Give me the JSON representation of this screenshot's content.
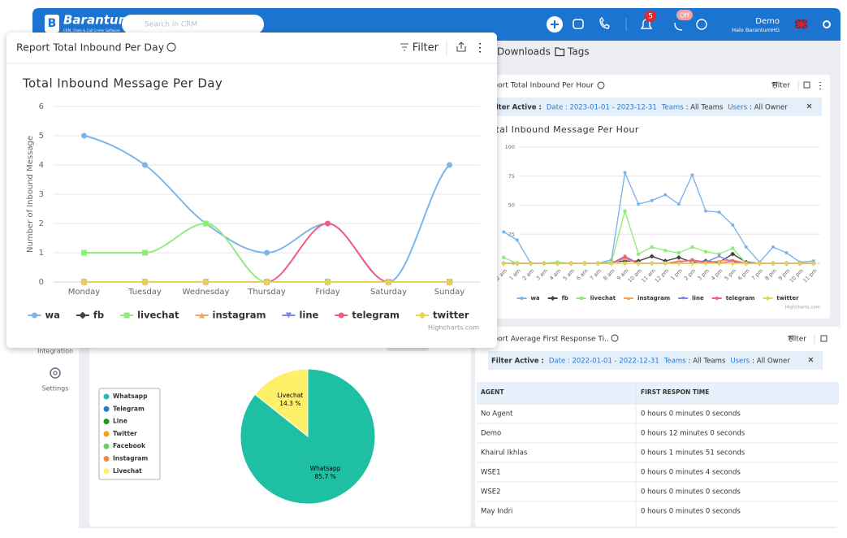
{
  "topbar": {
    "brand": "Barantum",
    "tagline": "CRM, Chats & Call Center Software",
    "search_placeholder": "Search in CRM",
    "notifications": "5",
    "status": "Off",
    "user_name": "Demo",
    "user_org": "Halo BarantumHG"
  },
  "sidebar": {
    "items": [
      "Integration",
      "Settings"
    ]
  },
  "tabs": [
    "Downloads",
    "Tags"
  ],
  "popup": {
    "header": "Report Total Inbound Per Day",
    "filter": "Filter",
    "chart": {
      "type": "line",
      "smooth": true,
      "title": "Total Inbound Message Per Day",
      "y_label": "Number of Inbound Message",
      "categories": [
        "Monday",
        "Tuesday",
        "Wednesday",
        "Thursday",
        "Friday",
        "Saturday",
        "Sunday"
      ],
      "series": [
        {
          "name": "wa",
          "color": "#7cb5ec",
          "values": [
            5,
            4,
            2,
            1,
            2,
            0,
            4
          ]
        },
        {
          "name": "fb",
          "color": "#434348",
          "values": [
            0,
            0,
            0,
            0,
            0,
            0,
            0
          ]
        },
        {
          "name": "livechat",
          "color": "#90ed7d",
          "values": [
            1,
            1,
            2,
            0,
            0,
            0,
            0
          ]
        },
        {
          "name": "instagram",
          "color": "#f7a35c",
          "values": [
            0,
            0,
            0,
            0,
            0,
            0,
            0
          ]
        },
        {
          "name": "line",
          "color": "#8085e9",
          "values": [
            0,
            0,
            0,
            0,
            0,
            0,
            0
          ]
        },
        {
          "name": "telegram",
          "color": "#f15c80",
          "values": [
            0,
            0,
            0,
            0,
            2,
            0,
            0
          ]
        },
        {
          "name": "twitter",
          "color": "#e4d354",
          "values": [
            0,
            0,
            0,
            0,
            0,
            0,
            0
          ]
        }
      ],
      "ylim": [
        0,
        6
      ],
      "yticks": [
        0,
        1,
        2,
        3,
        4,
        5,
        6
      ],
      "grid": true,
      "legend": "bottom",
      "credit": "Highcharts.com"
    }
  },
  "hourly_card": {
    "header": "Report Total Inbound Per Hour",
    "filter": "Filter",
    "filter_active": {
      "label": "Filter Active :",
      "date": "Date : 2023-01-01 - 2023-12-31",
      "teams_label": "Teams",
      "teams": ": All Teams",
      "users_label": "Users",
      "users": ": All Owner"
    },
    "chart": {
      "type": "line",
      "smooth": false,
      "title": "Total Inbound Message Per Hour",
      "categories": [
        "12 am",
        "1 am",
        "2 am",
        "3 am",
        "4 am",
        "5 am",
        "6 am",
        "7 am",
        "8 am",
        "9 am",
        "10 am",
        "11 am",
        "12 pm",
        "1 pm",
        "2 pm",
        "3 pm",
        "4 pm",
        "5 pm",
        "6 pm",
        "7 pm",
        "8 pm",
        "9 pm",
        "10 pm",
        "11 pm"
      ],
      "series": [
        {
          "name": "wa",
          "color": "#7cb5ec",
          "values": [
            27,
            20,
            0,
            0,
            0,
            0,
            0,
            0,
            3,
            78,
            51,
            54,
            59,
            51,
            76,
            45,
            44,
            33,
            14,
            1,
            14,
            9,
            1,
            2
          ]
        },
        {
          "name": "fb",
          "color": "#434348",
          "values": [
            0,
            0,
            0,
            0,
            0,
            0,
            0,
            0,
            1,
            2,
            2,
            6,
            2,
            5,
            1,
            2,
            1,
            8,
            1,
            0,
            0,
            0,
            0,
            0
          ]
        },
        {
          "name": "livechat",
          "color": "#90ed7d",
          "values": [
            5,
            0,
            0,
            0,
            1,
            0,
            0,
            0,
            1,
            45,
            8,
            14,
            11,
            9,
            14,
            10,
            8,
            13,
            0,
            0,
            0,
            0,
            0,
            0
          ]
        },
        {
          "name": "instagram",
          "color": "#f7a35c",
          "values": [
            0,
            0,
            0,
            0,
            0,
            0,
            0,
            0,
            0,
            4,
            0,
            0,
            0,
            2,
            2,
            1,
            2,
            3,
            0,
            0,
            0,
            0,
            0,
            0
          ]
        },
        {
          "name": "line",
          "color": "#8085e9",
          "values": [
            0,
            0,
            0,
            0,
            0,
            0,
            0,
            0,
            0,
            5,
            0,
            0,
            0,
            0,
            0,
            1,
            6,
            1,
            0,
            0,
            0,
            0,
            0,
            0
          ]
        },
        {
          "name": "telegram",
          "color": "#f15c80",
          "values": [
            0,
            0,
            0,
            0,
            0,
            0,
            0,
            0,
            0,
            6,
            0,
            0,
            0,
            1,
            3,
            1,
            0,
            2,
            0,
            0,
            0,
            0,
            0,
            0
          ]
        },
        {
          "name": "twitter",
          "color": "#e4d354",
          "values": [
            0,
            0,
            0,
            0,
            0,
            0,
            0,
            0,
            0,
            0,
            0,
            0,
            0,
            0,
            0,
            0,
            0,
            0,
            0,
            0,
            0,
            0,
            0,
            0
          ]
        }
      ],
      "ylim": [
        0,
        100
      ],
      "yticks": [
        0,
        25,
        50,
        75,
        100
      ],
      "grid": true,
      "legend": "bottom",
      "credit": "Highcharts.com"
    }
  },
  "pie_card": {
    "chart": {
      "type": "pie",
      "categories": [
        "Whatsapp",
        "Telegram",
        "Line",
        "Twitter",
        "Facebook",
        "Instagram",
        "Livechat"
      ],
      "colors": [
        "#1fbfa3",
        "#1f7fc4",
        "#1a9e1a",
        "#f5a31a",
        "#66cf66",
        "#f28a4f",
        "#fff06a"
      ],
      "values": [
        85.7,
        0,
        0,
        0,
        0,
        0,
        14.3
      ],
      "value_labels": [
        "85.7 %",
        null,
        null,
        null,
        null,
        null,
        "14.3 %"
      ],
      "legend": "left"
    }
  },
  "response_card": {
    "header": "Report Average First Response Ti..",
    "filter": "Filter",
    "filter_active": {
      "label": "Filter Active :",
      "date": "Date : 2022-01-01 - 2022-12-31",
      "teams_label": "Teams",
      "teams": ": All Teams",
      "users_label": "Users",
      "users": ": All Owner"
    },
    "table": {
      "columns": [
        "AGENT",
        "FIRST RESPON TIME"
      ],
      "rows": [
        [
          "No Agent",
          "0 hours 0 minutes 0 seconds"
        ],
        [
          "Demo",
          "0 hours 12 minutes 0 seconds"
        ],
        [
          "Khairul Ikhlas",
          "0 hours 1 minutes 51 seconds"
        ],
        [
          "WSE1",
          "0 hours 0 minutes 4 seconds"
        ],
        [
          "WSE2",
          "0 hours 0 minutes 0 seconds"
        ],
        [
          "May Indri",
          "0 hours 0 minutes 0 seconds"
        ]
      ]
    }
  }
}
